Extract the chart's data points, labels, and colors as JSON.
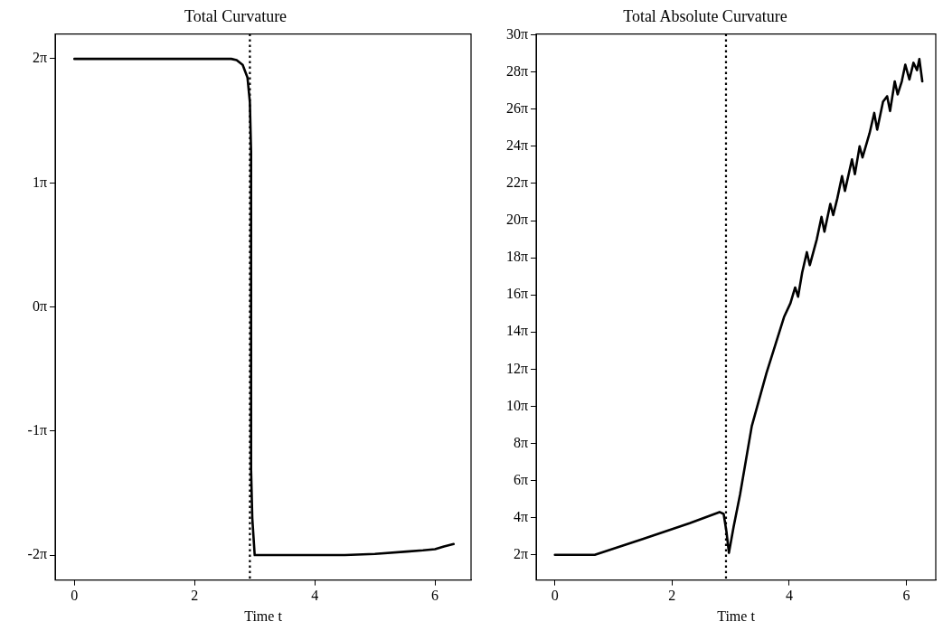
{
  "chart_data": [
    {
      "type": "line",
      "title": "Total Curvature",
      "xlabel": "Time t",
      "grid": false,
      "legend": false,
      "marker": "none",
      "line_style": "solid",
      "xlim": [
        -0.32,
        6.6
      ],
      "xticks": [
        0,
        2,
        4,
        6
      ],
      "ylim": [
        -6.91,
        6.91
      ],
      "yticks": [
        {
          "value": -6.2832,
          "label": "-2π"
        },
        {
          "value": -3.1416,
          "label": "-1π"
        },
        {
          "value": 0,
          "label": "0π"
        },
        {
          "value": 3.1416,
          "label": "1π"
        },
        {
          "value": 6.2832,
          "label": "2π"
        }
      ],
      "ref_lines": [
        {
          "axis": "x",
          "value": 2.92,
          "line_style": "dotted",
          "color": "#000000"
        }
      ],
      "series": [
        {
          "color": "#000000",
          "x": [
            0,
            1,
            2,
            2.5,
            2.61,
            2.7,
            2.8,
            2.88,
            2.92,
            2.94,
            2.94,
            2.96,
            3.0,
            3.5,
            4,
            4.5,
            5,
            5.53,
            5.8,
            6.0,
            6.15,
            6.31
          ],
          "values": [
            6.28,
            6.28,
            6.28,
            6.28,
            6.28,
            6.25,
            6.13,
            5.81,
            5.18,
            3.93,
            -4.12,
            -5.34,
            -6.28,
            -6.28,
            -6.28,
            -6.28,
            -6.25,
            -6.19,
            -6.16,
            -6.13,
            -6.06,
            -6.0
          ]
        }
      ]
    },
    {
      "type": "line",
      "title": "Total Absolute Curvature",
      "xlabel": "Time t",
      "grid": false,
      "legend": false,
      "marker": "none",
      "line_style": "solid",
      "xlim": [
        -0.32,
        6.5
      ],
      "xticks": [
        0,
        2,
        4,
        6
      ],
      "ylim": [
        2.01,
        94.41
      ],
      "yticks": [
        {
          "value": 6.2832,
          "label": "2π"
        },
        {
          "value": 12.5664,
          "label": "4π"
        },
        {
          "value": 18.8496,
          "label": "6π"
        },
        {
          "value": 25.1327,
          "label": "8π"
        },
        {
          "value": 31.4159,
          "label": "10π"
        },
        {
          "value": 37.6991,
          "label": "12π"
        },
        {
          "value": 43.9823,
          "label": "14π"
        },
        {
          "value": 50.2655,
          "label": "16π"
        },
        {
          "value": 56.5487,
          "label": "18π"
        },
        {
          "value": 62.8319,
          "label": "20π"
        },
        {
          "value": 69.115,
          "label": "22π"
        },
        {
          "value": 75.3982,
          "label": "24π"
        },
        {
          "value": 81.6814,
          "label": "26π"
        },
        {
          "value": 87.9646,
          "label": "28π"
        },
        {
          "value": 94.2478,
          "label": "30π"
        }
      ],
      "ref_lines": [
        {
          "axis": "x",
          "value": 2.92,
          "line_style": "dotted",
          "color": "#000000"
        }
      ],
      "series": [
        {
          "color": "#000000",
          "x": [
            0,
            0.68,
            1.5,
            2.3,
            2.81,
            2.88,
            2.93,
            2.97,
            3.05,
            3.16,
            3.36,
            3.61,
            3.91,
            4.02,
            4.1,
            4.15,
            4.22,
            4.3,
            4.35,
            4.47,
            4.55,
            4.6,
            4.7,
            4.75,
            4.82,
            4.9,
            4.95,
            5.07,
            5.12,
            5.2,
            5.25,
            5.37,
            5.45,
            5.5,
            5.6,
            5.67,
            5.72,
            5.8,
            5.85,
            5.92,
            5.98,
            6.05,
            6.12,
            6.18,
            6.22,
            6.27
          ],
          "values": [
            6.28,
            6.28,
            8.95,
            11.62,
            13.51,
            13.19,
            10.05,
            6.6,
            11.0,
            16.49,
            28.05,
            37.01,
            46.5,
            48.85,
            51.52,
            49.95,
            54.04,
            57.49,
            55.29,
            59.69,
            63.46,
            60.95,
            65.66,
            63.77,
            66.6,
            70.37,
            67.86,
            73.2,
            70.69,
            75.4,
            73.51,
            77.6,
            81.05,
            78.23,
            82.94,
            83.88,
            81.37,
            86.39,
            84.19,
            86.39,
            89.22,
            86.71,
            89.54,
            88.28,
            90.16,
            86.39
          ]
        }
      ]
    }
  ]
}
